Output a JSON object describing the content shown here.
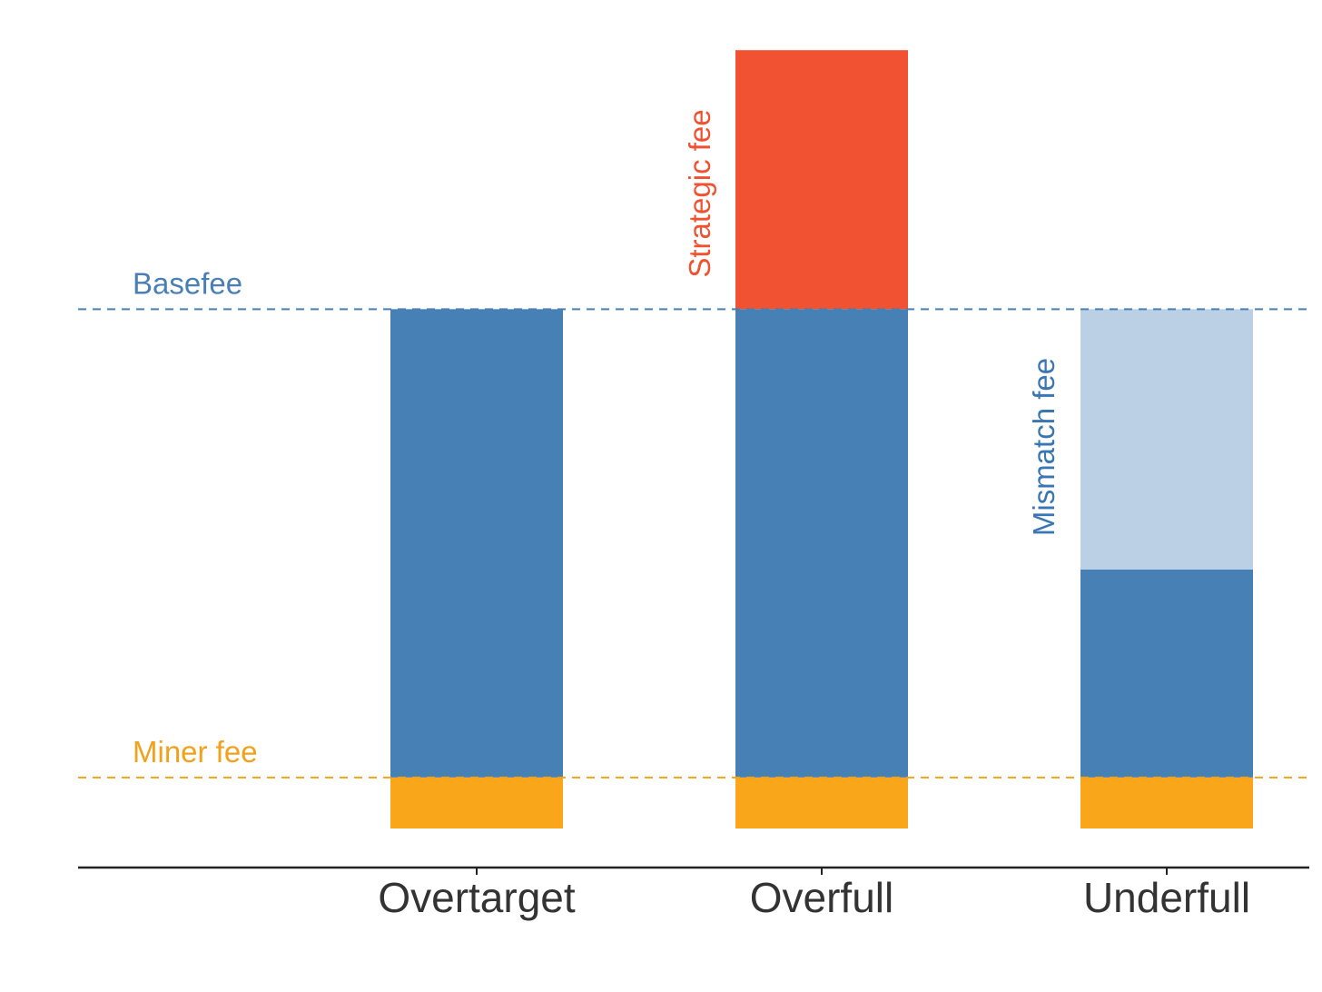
{
  "chart_data": {
    "type": "bar",
    "stacked": true,
    "categories": [
      "Overtarget",
      "Overfull",
      "Underfull"
    ],
    "ylim": [
      0,
      9.8
    ],
    "stacks": [
      {
        "category": "Overtarget",
        "segments": [
          {
            "kind": "miner",
            "bottom": 0,
            "top": 0.78
          },
          {
            "kind": "base",
            "bottom": 0.78,
            "top": 7.94
          }
        ]
      },
      {
        "category": "Overfull",
        "segments": [
          {
            "kind": "miner",
            "bottom": 0,
            "top": 0.78
          },
          {
            "kind": "base",
            "bottom": 0.78,
            "top": 7.94
          },
          {
            "kind": "strategic",
            "bottom": 7.94,
            "top": 11.9
          }
        ]
      },
      {
        "category": "Underfull",
        "segments": [
          {
            "kind": "miner",
            "bottom": 0,
            "top": 0.78
          },
          {
            "kind": "base",
            "bottom": 0.78,
            "top": 3.96
          },
          {
            "kind": "mismatch",
            "bottom": 3.96,
            "top": 7.94
          }
        ]
      }
    ],
    "reference_lines": [
      {
        "id": "basefee",
        "label": "Basefee",
        "value": 7.94,
        "color": "#4a7fb5",
        "style": "dashed"
      },
      {
        "id": "minerfee",
        "label": "Miner fee",
        "value": 0.78,
        "color": "#f0a21c",
        "style": "dashed"
      }
    ],
    "segment_labels": [
      {
        "id": "strategic",
        "label": "Strategic fee",
        "category": "Overfull",
        "color": "#f05230"
      },
      {
        "id": "mismatch",
        "label": "Mismatch fee",
        "category": "Underfull",
        "color": "#3a76b3"
      }
    ],
    "colors": {
      "miner": "#f9a61a",
      "base": "#4780b5",
      "strategic": "#f05232",
      "mismatch": "#bbd0e4",
      "axis": "#222222"
    },
    "grid": false,
    "xlabel": "",
    "ylabel": ""
  }
}
